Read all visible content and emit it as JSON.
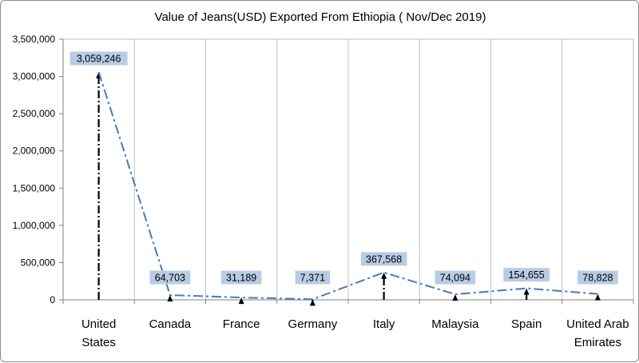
{
  "chart_data": {
    "type": "line",
    "title": "Value of Jeans(USD) Exported From Ethiopia ( Nov/Dec 2019)",
    "xlabel": "",
    "ylabel": "",
    "categories": [
      "United States",
      "Canada",
      "France",
      "Germany",
      "Italy",
      "Malaysia",
      "Spain",
      "United Arab Emirates"
    ],
    "category_lines": [
      [
        "United",
        "States"
      ],
      [
        "Canada"
      ],
      [
        "France"
      ],
      [
        "Germany"
      ],
      [
        "Italy"
      ],
      [
        "Malaysia"
      ],
      [
        "Spain"
      ],
      [
        "United Arab",
        "Emirates"
      ]
    ],
    "values": [
      3059246,
      64703,
      31189,
      7371,
      367568,
      74094,
      154655,
      78828
    ],
    "data_labels": [
      "3,059,246",
      "64,703",
      "31,189",
      "7,371",
      "367,568",
      "74,094",
      "154,655",
      "78,828"
    ],
    "ylim": [
      0,
      3500000
    ],
    "yticks": [
      0,
      500000,
      1000000,
      1500000,
      2000000,
      2500000,
      3000000,
      3500000
    ],
    "ytick_labels": [
      "0",
      "500,000",
      "1,000,000",
      "1,500,000",
      "2,000,000",
      "2,500,000",
      "3,000,000",
      "3,500,000"
    ],
    "grid": "vertical",
    "legend": "none",
    "colors": {
      "line": "#4a7ab5",
      "drop_line": "#000000",
      "label_bg": "#b8cce4",
      "grid": "#c0c0c0",
      "axis": "#808080"
    }
  }
}
